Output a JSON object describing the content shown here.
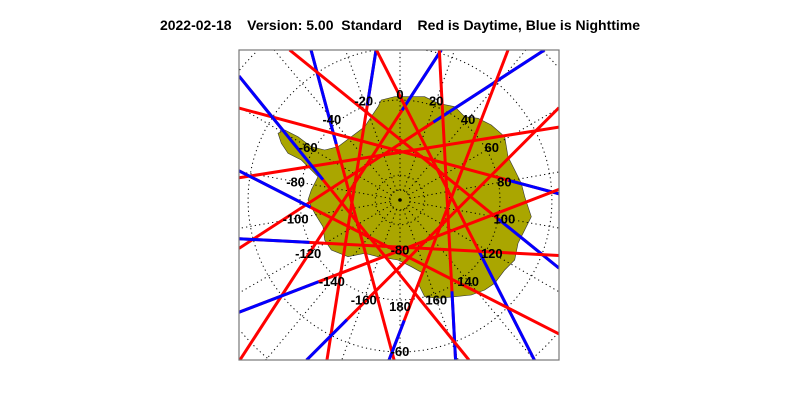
{
  "title": {
    "date": "2022-02-18",
    "version": "Version: 5.00",
    "product": "Standard",
    "legend_text": "Red is Daytime, Blue is Nighttime"
  },
  "map": {
    "projection": "south polar stereographic",
    "land_color": "#aaa600",
    "day_color": "#ff0000",
    "night_color": "#0000ff",
    "grid": "dotted",
    "lon_labels": [
      "0",
      "20",
      "40",
      "60",
      "80",
      "100",
      "120",
      "140",
      "160",
      "180",
      "-160",
      "-140",
      "-120",
      "-100",
      "-80",
      "-60",
      "-40",
      "-20"
    ],
    "lat_labels": [
      "-80",
      "-60"
    ],
    "tracks": {
      "closest_approach_lat": -80.5,
      "items": [
        {
          "tangent_lon": -105,
          "night_from_lat": -73
        },
        {
          "tangent_lon": -81,
          "night_from_lat": -70
        },
        {
          "tangent_lon": -57,
          "night_from_lat": -72
        },
        {
          "tangent_lon": -33,
          "night_from_lat": -73
        },
        {
          "tangent_lon": -9,
          "night_from_lat": null
        },
        {
          "tangent_lon": 15,
          "night_from_lat": -68
        },
        {
          "tangent_lon": 39,
          "night_from_lat": -70
        },
        {
          "tangent_lon": 63,
          "night_from_lat": -71
        },
        {
          "tangent_lon": 87,
          "night_from_lat": -69
        },
        {
          "tangent_lon": 111,
          "night_from_lat": -66
        },
        {
          "tangent_lon": 135,
          "night_from_lat": -64
        },
        {
          "tangent_lon": 159,
          "night_from_lat": -67
        },
        {
          "tangent_lon": 183,
          "night_from_lat": -70
        },
        {
          "tangent_lon": 207,
          "night_from_lat": -72
        },
        {
          "tangent_lon": 231,
          "night_from_lat": -74
        }
      ]
    }
  }
}
